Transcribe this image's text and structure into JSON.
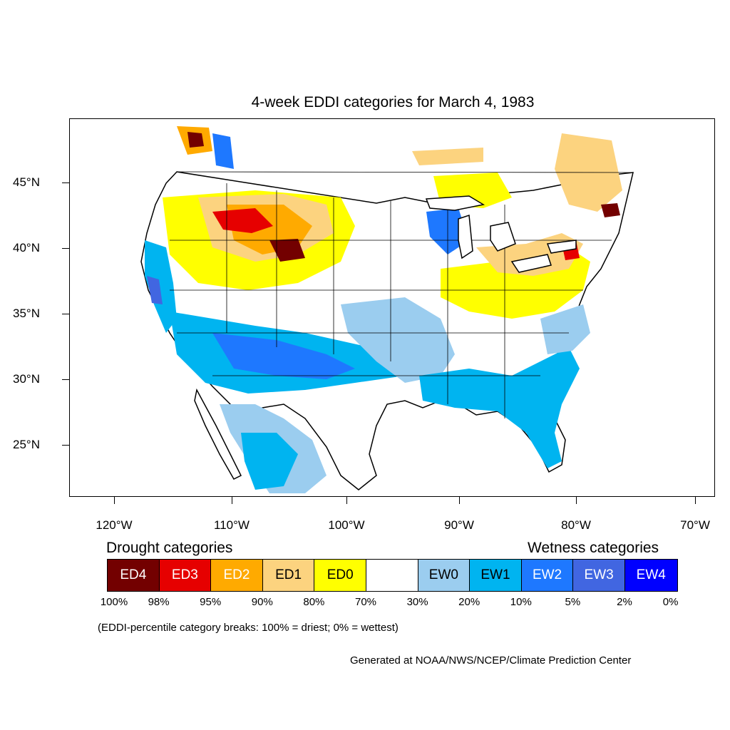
{
  "title": "4-week EDDI categories for March 4, 1983",
  "lat_labels": [
    "45°N",
    "40°N",
    "35°N",
    "30°N",
    "25°N"
  ],
  "lon_labels": [
    "120°W",
    "110°W",
    "100°W",
    "90°W",
    "80°W",
    "70°W"
  ],
  "legend": {
    "drought_heading": "Drought categories",
    "wetness_heading": "Wetness categories",
    "categories": [
      {
        "label": "ED4",
        "color": "#730000",
        "text_color": "#ffffff"
      },
      {
        "label": "ED3",
        "color": "#e60000",
        "text_color": "#ffffff"
      },
      {
        "label": "ED2",
        "color": "#ffaa00",
        "text_color": "#ffffff"
      },
      {
        "label": "ED1",
        "color": "#fcd37f",
        "text_color": "#000000"
      },
      {
        "label": "ED0",
        "color": "#ffff00",
        "text_color": "#000000"
      },
      {
        "label": "",
        "color": "#ffffff",
        "text_color": "#000000"
      },
      {
        "label": "EW0",
        "color": "#9bcdef",
        "text_color": "#000000"
      },
      {
        "label": "EW1",
        "color": "#00b4f0",
        "text_color": "#000000"
      },
      {
        "label": "EW2",
        "color": "#1e78ff",
        "text_color": "#ffffff"
      },
      {
        "label": "EW3",
        "color": "#4166e1",
        "text_color": "#ffffff"
      },
      {
        "label": "EW4",
        "color": "#0000ff",
        "text_color": "#ffffff"
      }
    ],
    "percent_breaks": [
      "100%",
      "98%",
      "95%",
      "90%",
      "80%",
      "70%",
      "30%",
      "20%",
      "10%",
      "5%",
      "2%",
      "0%"
    ]
  },
  "note": "(EDDI-percentile category breaks: 100% = driest; 0% = wettest)",
  "credit": "Generated at NOAA/NWS/NCEP/Climate Prediction Center"
}
